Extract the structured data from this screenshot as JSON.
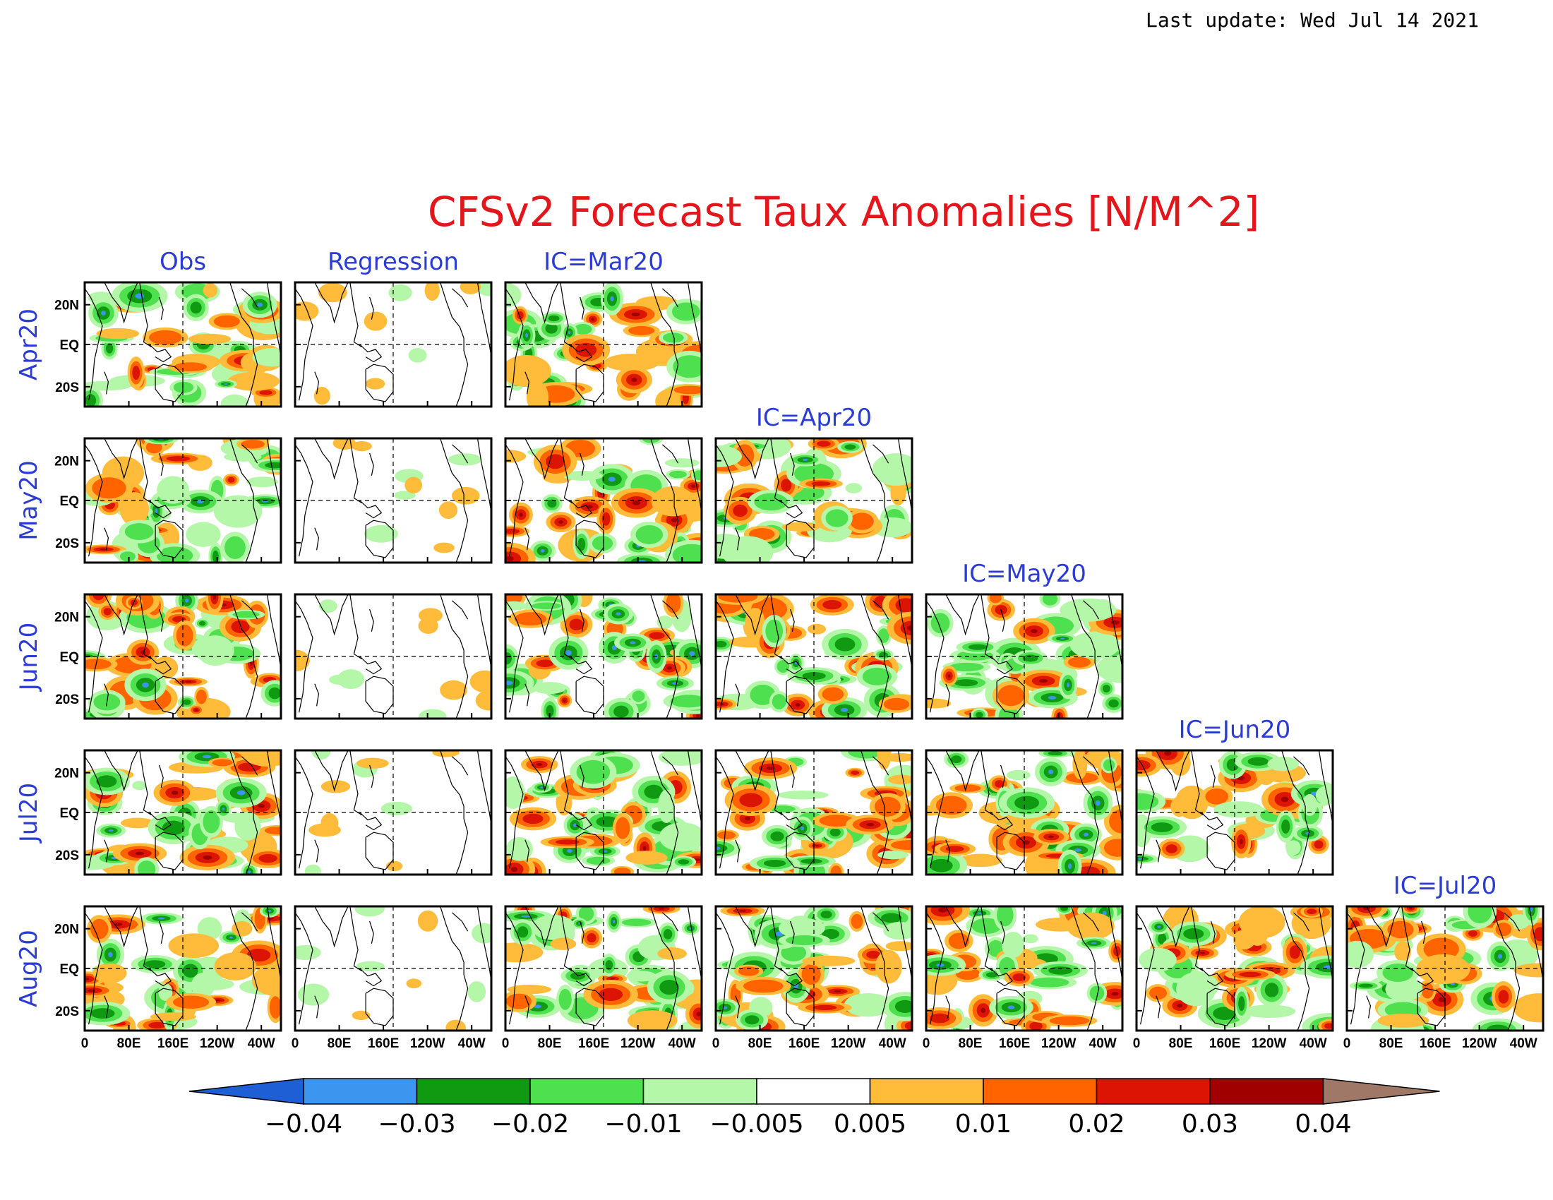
{
  "last_update": "Last update: Wed Jul 14 2021",
  "title": "CFSv2 Forecast Taux Anomalies [N/M^2]",
  "columns": [
    "Obs",
    "Regression",
    "IC=Mar20",
    "IC=Apr20",
    "IC=May20",
    "IC=Jun20",
    "IC=Jul20"
  ],
  "rows": [
    "Apr20",
    "May20",
    "Jun20",
    "Jul20",
    "Aug20"
  ],
  "lat_ticks": [
    "20N",
    "EQ",
    "20S"
  ],
  "lon_ticks": [
    "0",
    "80E",
    "160E",
    "120W",
    "40W"
  ],
  "colorbar": {
    "colors": [
      "#1f5fd6",
      "#3c96f0",
      "#0f9a12",
      "#4fe04f",
      "#b4f7a9",
      "#ffffff",
      "#ffbb3a",
      "#ff6400",
      "#dc1404",
      "#a00000",
      "#a07868"
    ],
    "labels": [
      "−0.04",
      "−0.03",
      "−0.02",
      "−0.01",
      "−0.005",
      "0.005",
      "0.01",
      "0.02",
      "0.03",
      "0.04"
    ]
  }
}
